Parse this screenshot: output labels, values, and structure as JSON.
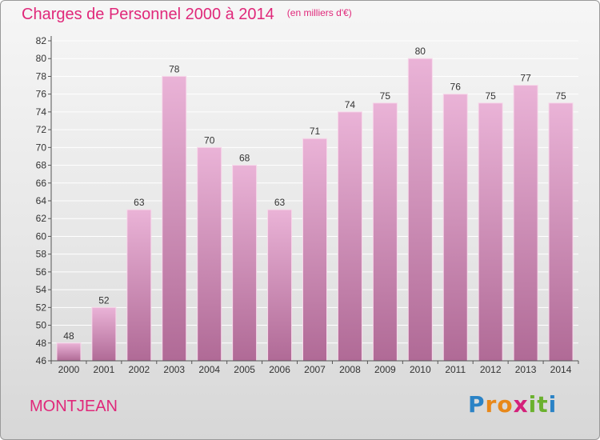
{
  "title": "Charges de Personnel 2000 à 2014",
  "unit": "(en milliers d'€)",
  "commune": "MONTJEAN",
  "logo": {
    "letters": [
      "P",
      "r",
      "o",
      "x",
      "i",
      "t",
      "i"
    ],
    "colors": [
      "#2b83c6",
      "#e8881a",
      "#e8881a",
      "#d4207a",
      "#6bb12e",
      "#6bb12e",
      "#2b83c6"
    ]
  },
  "colors": {
    "title": "#e0287a",
    "bar_top": "#eab3d7",
    "bar_bottom": "#b06a96",
    "grid": "#ffffff"
  },
  "chart_data": {
    "type": "bar",
    "categories": [
      "2000",
      "2001",
      "2002",
      "2003",
      "2004",
      "2005",
      "2006",
      "2007",
      "2008",
      "2009",
      "2010",
      "2011",
      "2012",
      "2013",
      "2014"
    ],
    "values": [
      48,
      52,
      63,
      78,
      70,
      68,
      63,
      71,
      74,
      75,
      80,
      76,
      75,
      77,
      75
    ],
    "ylim": [
      46,
      82
    ],
    "yticks": [
      46,
      48,
      50,
      52,
      54,
      56,
      58,
      60,
      62,
      64,
      66,
      68,
      70,
      72,
      74,
      76,
      78,
      80,
      82
    ],
    "grid": true
  }
}
